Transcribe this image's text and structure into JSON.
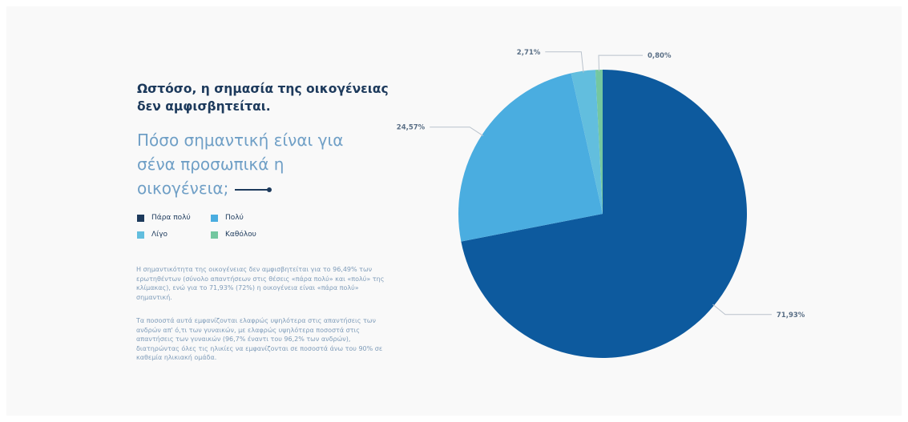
{
  "heading": "Ωστόσο, η σημασία της οικογένειας δεν αμφισβητείται.",
  "question": "Πόσο σημαντική είναι για σένα προσωπικά η οικογένεια;",
  "paragraphs": [
    "Η σημαντικότητα της οικογένειας δεν αμφισβητείται για το 96,49% των ερωτηθέντων (σύνολο απαντήσεων στις θέσεις «πάρα πολύ» και «πολύ» της κλίμακας), ενώ για το 71,93% (72%) η οικογένεια είναι «πάρα πολύ» σημαντική.",
    "Τα ποσοστά αυτά εμφανίζονται ελαφρώς υψηλότερα στις απαντήσεις των ανδρών απ' ό,τι των γυναικών, με ελαφρώς υψηλότερα ποσοστά στις απαντήσεις των γυναικών (96,7% έναντι του 96,2% των ανδρών), διατηρώντας όλες τις ηλικίες να εμφανίζονται σε ποσοστά άνω του 90% σε καθεμία ηλικιακή ομάδα."
  ],
  "chart_data": {
    "type": "pie",
    "title": "",
    "categories": [
      "Πάρα πολύ",
      "Πολύ",
      "Λίγο",
      "Καθόλου"
    ],
    "values": [
      71.93,
      24.57,
      2.71,
      0.8
    ],
    "value_labels": [
      "71,93%",
      "24,57%",
      "2,71%",
      "0,80%"
    ],
    "colors": [
      "#0d5a9e",
      "#4aade0",
      "#62bede",
      "#74c7a0"
    ],
    "legend": {
      "position": "left",
      "items": [
        {
          "label": "Πάρα πολύ",
          "color": "#1d3a5c"
        },
        {
          "label": "Πολύ",
          "color": "#4aade0"
        },
        {
          "label": "Λίγο",
          "color": "#62bede"
        },
        {
          "label": "Καθόλου",
          "color": "#74c7a0"
        }
      ]
    }
  }
}
